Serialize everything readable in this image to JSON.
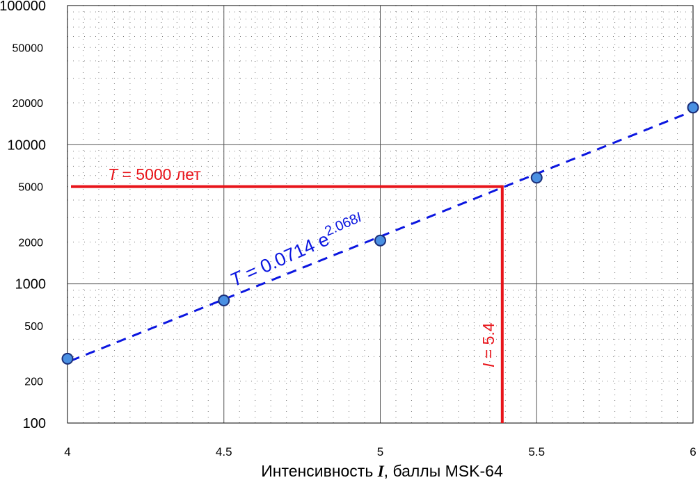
{
  "chart_data": {
    "type": "scatter",
    "xlabel_prefix": "Интенсивность ",
    "xlabel_var": "I",
    "xlabel_suffix": ", баллы MSK-64",
    "ylabel": "",
    "xlim": [
      4,
      6
    ],
    "ylim": [
      100,
      100000
    ],
    "yscale": "log",
    "grid": true,
    "x_ticks": [
      "4",
      "4.5",
      "5",
      "5.5",
      "6"
    ],
    "y_ticks_major": [
      "100",
      "1000",
      "10000",
      "100000"
    ],
    "y_ticks_minor": [
      "200",
      "500",
      "2000",
      "5000",
      "20000",
      "50000"
    ],
    "points": [
      {
        "x": 4.0,
        "y": 290
      },
      {
        "x": 4.5,
        "y": 760
      },
      {
        "x": 5.0,
        "y": 2050
      },
      {
        "x": 5.5,
        "y": 5800
      },
      {
        "x": 6.0,
        "y": 18500
      }
    ],
    "fit": {
      "a": 0.0714,
      "b": 2.068,
      "label_var": "T",
      "label_rest": " = 0.0714 e",
      "label_exp": "2.068",
      "label_exp_var": "I",
      "color": "#0b16e0"
    },
    "annotation_T": {
      "value": 5000,
      "label_var": "T",
      "label_rest": " = 5000 лет",
      "color": "#e8141a"
    },
    "annotation_I": {
      "value": 5.39,
      "label_var": "I",
      "label_rest": " = 5.4",
      "color": "#e8141a"
    },
    "marker_color": "#4a90e2",
    "marker_edge": "#1b2f7a"
  }
}
